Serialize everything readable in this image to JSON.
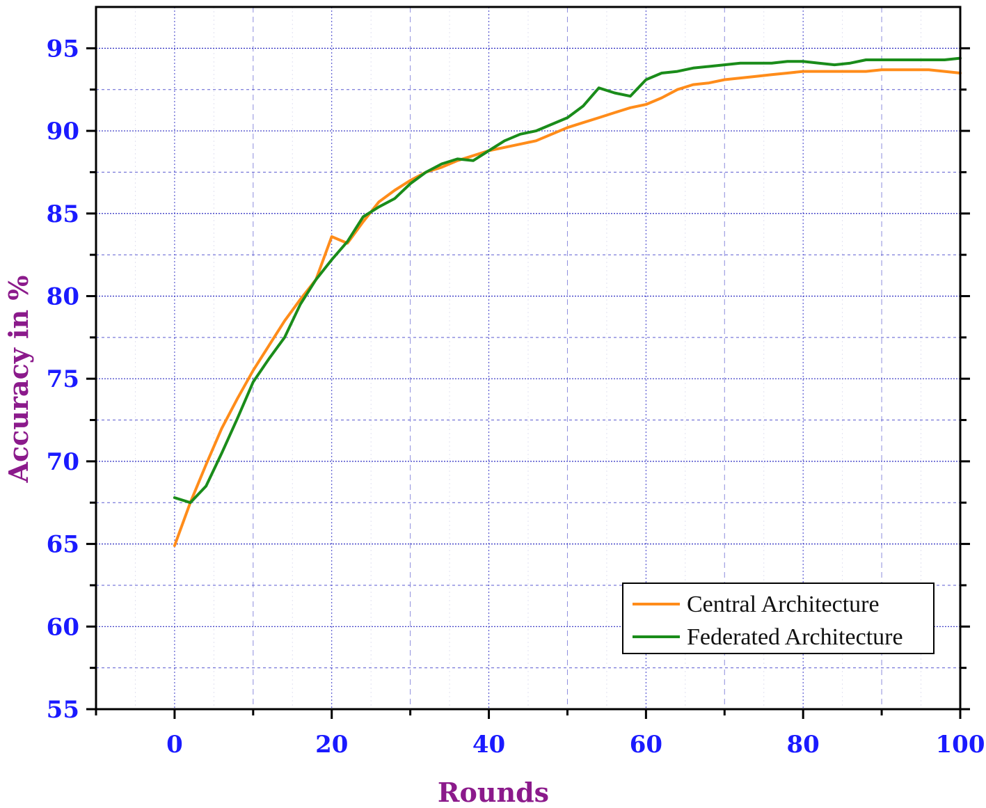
{
  "chart_data": {
    "type": "line",
    "xlabel": "Rounds",
    "ylabel": "Accuracy in %",
    "xlim": [
      -10,
      100
    ],
    "ylim": [
      55,
      97.5
    ],
    "x_ticks": [
      0,
      20,
      40,
      60,
      80,
      100
    ],
    "y_ticks": [
      55,
      60,
      65,
      70,
      75,
      80,
      85,
      90,
      95
    ],
    "grid": true,
    "legend_position": "bottom-right",
    "series": [
      {
        "name": "Central Architecture",
        "color": "#ff8c1a",
        "x": [
          0,
          2,
          4,
          6,
          8,
          10,
          12,
          14,
          16,
          18,
          20,
          22,
          24,
          26,
          28,
          30,
          32,
          34,
          36,
          38,
          40,
          42,
          44,
          46,
          48,
          50,
          52,
          54,
          56,
          58,
          60,
          62,
          64,
          66,
          68,
          70,
          72,
          74,
          76,
          78,
          80,
          82,
          84,
          86,
          88,
          90,
          92,
          94,
          96,
          98,
          100
        ],
        "y": [
          64.9,
          67.5,
          69.8,
          72.0,
          73.8,
          75.5,
          77.0,
          78.5,
          79.8,
          81.0,
          83.6,
          83.2,
          84.5,
          85.7,
          86.4,
          87.0,
          87.5,
          87.8,
          88.2,
          88.5,
          88.8,
          89.0,
          89.2,
          89.4,
          89.8,
          90.2,
          90.5,
          90.8,
          91.1,
          91.4,
          91.6,
          92.0,
          92.5,
          92.8,
          92.9,
          93.1,
          93.2,
          93.3,
          93.4,
          93.5,
          93.6,
          93.6,
          93.6,
          93.6,
          93.6,
          93.7,
          93.7,
          93.7,
          93.7,
          93.6,
          93.5
        ]
      },
      {
        "name": "Federated Architecture",
        "color": "#1a8c1a",
        "x": [
          0,
          2,
          4,
          6,
          8,
          10,
          12,
          14,
          16,
          18,
          20,
          22,
          24,
          26,
          28,
          30,
          32,
          34,
          36,
          38,
          40,
          42,
          44,
          46,
          48,
          50,
          52,
          54,
          56,
          58,
          60,
          62,
          64,
          66,
          68,
          70,
          72,
          74,
          76,
          78,
          80,
          82,
          84,
          86,
          88,
          90,
          92,
          94,
          96,
          98,
          100
        ],
        "y": [
          67.8,
          67.5,
          68.5,
          70.5,
          72.6,
          74.8,
          76.2,
          77.5,
          79.5,
          81.0,
          82.2,
          83.3,
          84.8,
          85.4,
          85.9,
          86.8,
          87.5,
          88.0,
          88.3,
          88.2,
          88.8,
          89.4,
          89.8,
          90.0,
          90.4,
          90.8,
          91.5,
          92.6,
          92.3,
          92.1,
          93.1,
          93.5,
          93.6,
          93.8,
          93.9,
          94.0,
          94.1,
          94.1,
          94.1,
          94.2,
          94.2,
          94.1,
          94.0,
          94.1,
          94.3,
          94.3,
          94.3,
          94.3,
          94.3,
          94.3,
          94.4
        ]
      }
    ]
  }
}
